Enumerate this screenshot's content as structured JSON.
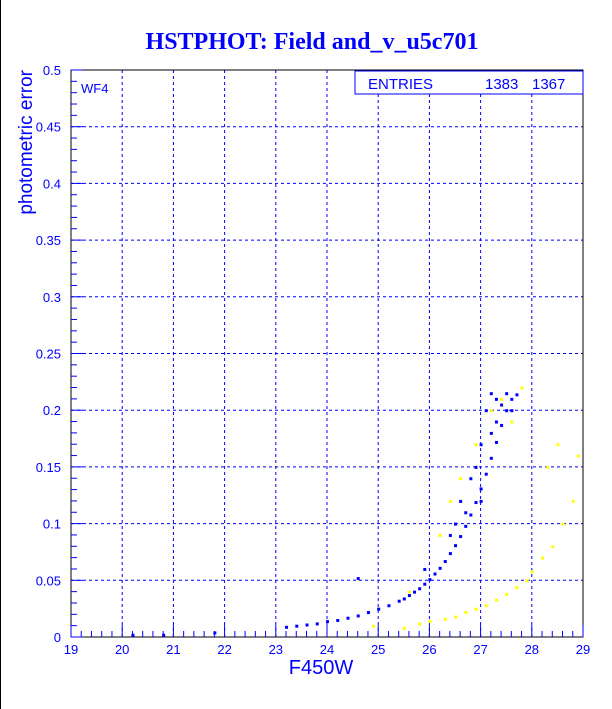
{
  "chart_data": {
    "type": "scatter",
    "title": "HSTPHOT: Field and_v_u5c701",
    "xlabel": "F450W",
    "ylabel": "photometric error",
    "panel_label": "WF4",
    "stats_box": {
      "label": "ENTRIES",
      "values": [
        "1383",
        "1367"
      ]
    },
    "xlim": [
      19,
      29
    ],
    "ylim": [
      0,
      0.5
    ],
    "x_ticks": [
      "19",
      "20",
      "21",
      "22",
      "23",
      "24",
      "25",
      "26",
      "27",
      "28",
      "29"
    ],
    "y_ticks": [
      "0",
      "0.05",
      "0.1",
      "0.15",
      "0.2",
      "0.25",
      "0.3",
      "0.35",
      "0.4",
      "0.45",
      "0.5"
    ],
    "grid": true,
    "colors": {
      "blue": "#0000ff",
      "yellow": "#ffff00"
    },
    "series": [
      {
        "name": "blue",
        "color": "#0000ff",
        "points": [
          [
            23.2,
            0.009
          ],
          [
            23.4,
            0.01
          ],
          [
            23.6,
            0.011
          ],
          [
            23.8,
            0.012
          ],
          [
            24.0,
            0.014
          ],
          [
            24.2,
            0.015
          ],
          [
            24.4,
            0.017
          ],
          [
            24.6,
            0.019
          ],
          [
            24.8,
            0.022
          ],
          [
            25.0,
            0.025
          ],
          [
            25.2,
            0.028
          ],
          [
            25.4,
            0.032
          ],
          [
            25.5,
            0.034
          ],
          [
            25.6,
            0.037
          ],
          [
            25.7,
            0.04
          ],
          [
            25.8,
            0.043
          ],
          [
            25.9,
            0.047
          ],
          [
            26.0,
            0.051
          ],
          [
            26.1,
            0.056
          ],
          [
            26.2,
            0.061
          ],
          [
            26.3,
            0.067
          ],
          [
            26.4,
            0.074
          ],
          [
            26.5,
            0.081
          ],
          [
            26.6,
            0.089
          ],
          [
            26.7,
            0.098
          ],
          [
            26.8,
            0.108
          ],
          [
            26.9,
            0.119
          ],
          [
            27.0,
            0.131
          ],
          [
            27.1,
            0.144
          ],
          [
            27.2,
            0.158
          ],
          [
            27.3,
            0.172
          ],
          [
            27.4,
            0.187
          ],
          [
            27.5,
            0.2
          ],
          [
            27.6,
            0.21
          ],
          [
            27.7,
            0.214
          ],
          [
            26.6,
            0.12
          ],
          [
            26.8,
            0.14
          ],
          [
            27.0,
            0.17
          ],
          [
            27.1,
            0.2
          ],
          [
            27.2,
            0.215
          ],
          [
            27.3,
            0.21
          ],
          [
            26.4,
            0.09
          ],
          [
            26.9,
            0.15
          ],
          [
            27.4,
            0.205
          ],
          [
            27.6,
            0.2
          ],
          [
            27.5,
            0.215
          ],
          [
            27.2,
            0.18
          ],
          [
            26.7,
            0.11
          ],
          [
            25.9,
            0.06
          ],
          [
            24.6,
            0.052
          ],
          [
            20.2,
            0.002
          ],
          [
            20.8,
            0.002
          ],
          [
            21.8,
            0.004
          ],
          [
            27.0,
            0.12
          ],
          [
            27.3,
            0.19
          ],
          [
            26.5,
            0.1
          ]
        ]
      },
      {
        "name": "yellow",
        "color": "#ffff00",
        "points": [
          [
            25.5,
            0.008
          ],
          [
            25.8,
            0.012
          ],
          [
            26.0,
            0.014
          ],
          [
            26.3,
            0.016
          ],
          [
            26.5,
            0.018
          ],
          [
            26.7,
            0.022
          ],
          [
            26.9,
            0.025
          ],
          [
            27.1,
            0.028
          ],
          [
            27.3,
            0.033
          ],
          [
            27.5,
            0.038
          ],
          [
            27.7,
            0.044
          ],
          [
            27.9,
            0.05
          ],
          [
            28.0,
            0.058
          ],
          [
            28.2,
            0.07
          ],
          [
            28.4,
            0.08
          ],
          [
            28.6,
            0.1
          ],
          [
            28.8,
            0.12
          ],
          [
            28.9,
            0.16
          ],
          [
            28.3,
            0.15
          ],
          [
            28.5,
            0.17
          ],
          [
            27.4,
            0.21
          ],
          [
            27.6,
            0.19
          ],
          [
            27.2,
            0.2
          ],
          [
            26.9,
            0.17
          ],
          [
            26.6,
            0.14
          ],
          [
            26.4,
            0.12
          ],
          [
            26.2,
            0.09
          ],
          [
            25.6,
            0.04
          ],
          [
            24.9,
            0.01
          ],
          [
            27.8,
            0.22
          ]
        ]
      }
    ]
  }
}
